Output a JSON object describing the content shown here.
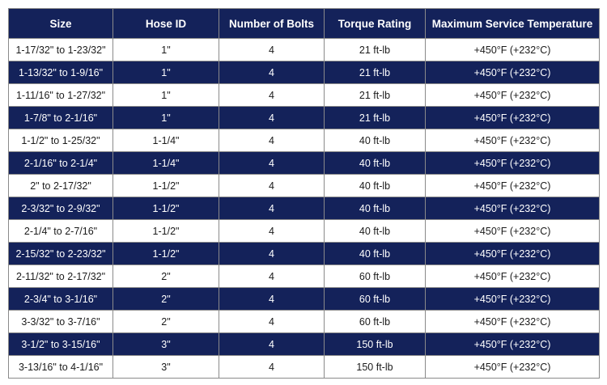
{
  "colors": {
    "header_bg": "#14225a",
    "header_text": "#ffffff",
    "dark_row_bg": "#14225a",
    "light_row_bg": "#ffffff",
    "border": "#8a8a8a"
  },
  "table": {
    "headers": [
      "Size",
      "Hose ID",
      "Number of Bolts",
      "Torque Rating",
      "Maximum Service Temperature"
    ],
    "rows": [
      [
        "1-17/32\" to 1-23/32\"",
        "1\"",
        "4",
        "21 ft-lb",
        "+450°F (+232°C)"
      ],
      [
        "1-13/32\" to 1-9/16\"",
        "1\"",
        "4",
        "21 ft-lb",
        "+450°F (+232°C)"
      ],
      [
        "1-11/16\" to 1-27/32\"",
        "1\"",
        "4",
        "21 ft-lb",
        "+450°F (+232°C)"
      ],
      [
        "1-7/8\" to 2-1/16\"",
        "1\"",
        "4",
        "21 ft-lb",
        "+450°F (+232°C)"
      ],
      [
        "1-1/2\" to 1-25/32\"",
        "1-1/4\"",
        "4",
        "40 ft-lb",
        "+450°F (+232°C)"
      ],
      [
        "2-1/16\" to 2-1/4\"",
        "1-1/4\"",
        "4",
        "40 ft-lb",
        "+450°F (+232°C)"
      ],
      [
        "2\" to 2-17/32\"",
        "1-1/2\"",
        "4",
        "40 ft-lb",
        "+450°F (+232°C)"
      ],
      [
        "2-3/32\" to 2-9/32\"",
        "1-1/2\"",
        "4",
        "40 ft-lb",
        "+450°F (+232°C)"
      ],
      [
        "2-1/4\" to 2-7/16\"",
        "1-1/2\"",
        "4",
        "40 ft-lb",
        "+450°F (+232°C)"
      ],
      [
        "2-15/32\" to 2-23/32\"",
        "1-1/2\"",
        "4",
        "40 ft-lb",
        "+450°F (+232°C)"
      ],
      [
        "2-11/32\" to 2-17/32\"",
        "2\"",
        "4",
        "60 ft-lb",
        "+450°F (+232°C)"
      ],
      [
        "2-3/4\" to 3-1/16\"",
        "2\"",
        "4",
        "60 ft-lb",
        "+450°F (+232°C)"
      ],
      [
        "3-3/32\" to 3-7/16\"",
        "2\"",
        "4",
        "60 ft-lb",
        "+450°F (+232°C)"
      ],
      [
        "3-1/2\" to 3-15/16\"",
        "3\"",
        "4",
        "150 ft-lb",
        "+450°F (+232°C)"
      ],
      [
        "3-13/16\" to 4-1/16\"",
        "3\"",
        "4",
        "150 ft-lb",
        "+450°F (+232°C)"
      ]
    ]
  }
}
